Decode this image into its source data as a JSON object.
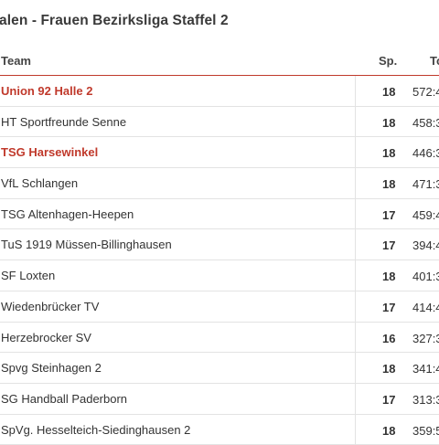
{
  "page": {
    "title": "alen - Frauen Bezirksliga Staffel 2"
  },
  "table": {
    "headers": {
      "team": "Team",
      "sp": "Sp.",
      "tore": "To"
    },
    "rows": [
      {
        "team": "Union 92 Halle 2",
        "sp": "18",
        "tore": "572:4",
        "highlight": true
      },
      {
        "team": "HT Sportfreunde Senne",
        "sp": "18",
        "tore": "458:3",
        "highlight": false
      },
      {
        "team": "TSG Harsewinkel",
        "sp": "18",
        "tore": "446:3",
        "highlight": true
      },
      {
        "team": "VfL Schlangen",
        "sp": "18",
        "tore": "471:3",
        "highlight": false
      },
      {
        "team": "TSG Altenhagen-Heepen",
        "sp": "17",
        "tore": "459:4",
        "highlight": false
      },
      {
        "team": "TuS 1919 Müssen-Billinghausen",
        "sp": "17",
        "tore": "394:4",
        "highlight": false
      },
      {
        "team": "SF Loxten",
        "sp": "18",
        "tore": "401:3",
        "highlight": false
      },
      {
        "team": "Wiedenbrücker TV",
        "sp": "17",
        "tore": "414:4",
        "highlight": false
      },
      {
        "team": "Herzebrocker SV",
        "sp": "16",
        "tore": "327:3",
        "highlight": false
      },
      {
        "team": "Spvg Steinhagen 2",
        "sp": "18",
        "tore": "341:4",
        "highlight": false
      },
      {
        "team": "SG Handball Paderborn",
        "sp": "17",
        "tore": "313:3",
        "highlight": false
      },
      {
        "team": "SpVg. Hesselteich-Siedinghausen 2",
        "sp": "18",
        "tore": "359:5",
        "highlight": false
      }
    ]
  },
  "colors": {
    "accent": "#c0392b",
    "text": "#333333",
    "divider": "#e3e3e3"
  }
}
